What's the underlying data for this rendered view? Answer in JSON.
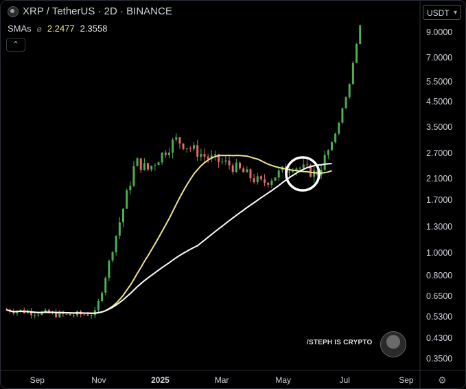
{
  "header": {
    "symbol": "XRP / TetherUS · 2D · BINANCE",
    "sma_label": "SMAs",
    "sma_values": [
      "2.2477",
      "2.3558"
    ],
    "collapse_symbol": "⌃",
    "currency": "USDT"
  },
  "watermark": {
    "text": "/STEPH IS CRYPTO"
  },
  "colors": {
    "up": "#4caf50",
    "down": "#e06a6a",
    "sma_fast": "#f0e68c",
    "sma_slow": "#ffffff",
    "background": "#000000"
  },
  "chart_data": {
    "type": "candlestick",
    "y_scale": "log",
    "y_ticks": [
      "9.0000",
      "7.0000",
      "5.5000",
      "4.5000",
      "3.5000",
      "2.7000",
      "2.1000",
      "1.7000",
      "1.3000",
      "1.0000",
      "0.8000",
      "0.6500",
      "0.5300",
      "0.4300",
      "0.3500"
    ],
    "x_ticks": [
      "Sep",
      "Nov",
      "2025",
      "Mar",
      "May",
      "Jul",
      "Sep"
    ],
    "sma_fast_last": 2.2477,
    "sma_slow_last": 2.3558,
    "price_path": [
      {
        "period": "Aug-Sep 2024",
        "close": 0.57
      },
      {
        "period": "Oct 2024",
        "close": 0.54
      },
      {
        "period": "early Nov 2024",
        "close": 0.55
      },
      {
        "period": "late Nov 2024",
        "close": 1.4
      },
      {
        "period": "early Dec 2024",
        "close": 2.5
      },
      {
        "period": "mid Dec 2024",
        "close": 2.3
      },
      {
        "period": "mid Jan 2025",
        "close": 3.1
      },
      {
        "period": "Feb 2025",
        "close": 2.6
      },
      {
        "period": "Mar 2025",
        "close": 2.4
      },
      {
        "period": "Apr 2025",
        "close": 2.0
      },
      {
        "period": "May 2025",
        "close": 2.4
      },
      {
        "period": "early Jun 2025",
        "close": 2.2
      },
      {
        "period": "late Jun 2025",
        "close": 3.0
      },
      {
        "period": "early Jul 2025",
        "close": 5.0
      },
      {
        "period": "mid Jul 2025",
        "close": 9.5
      }
    ],
    "annotations": [
      "circle highlighting SMA crossover near 2.2"
    ]
  }
}
